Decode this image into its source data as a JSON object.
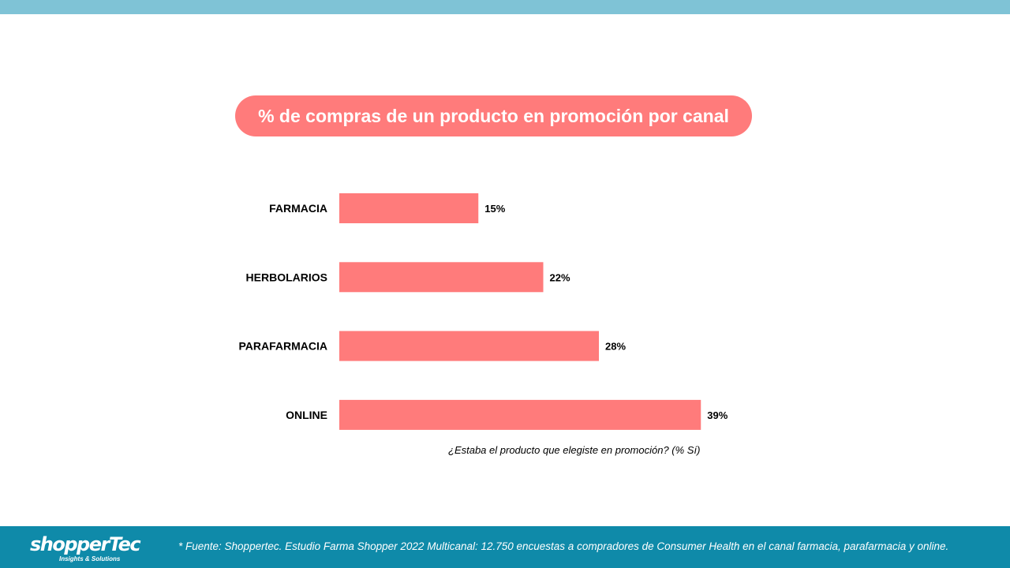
{
  "header": {
    "title": "% de compras de un producto en promoción por canal"
  },
  "chart_data": {
    "type": "bar",
    "orientation": "horizontal",
    "categories": [
      "FARMACIA",
      "HERBOLARIOS",
      "PARAFARMACIA",
      "ONLINE"
    ],
    "values": [
      15,
      22,
      28,
      39
    ],
    "value_labels": [
      "15%",
      "22%",
      "28%",
      "39%"
    ],
    "xlim": [
      0,
      45
    ],
    "bar_color": "#ff7b7b",
    "grid": false
  },
  "question": "¿Estaba el producto que elegiste en promoción? (% Sí)",
  "footer": {
    "logo_text": "shopperTec",
    "logo_tagline": "Insights & Solutions",
    "source": "* Fuente: Shoppertec. Estudio Farma Shopper 2022 Multicanal: 12.750 encuestas a compradores de Consumer Health en el canal farmacia, parafarmacia y online."
  },
  "colors": {
    "top_bar": "#7fc3d6",
    "footer": "#0f8aa9",
    "accent": "#ff7b7b"
  }
}
